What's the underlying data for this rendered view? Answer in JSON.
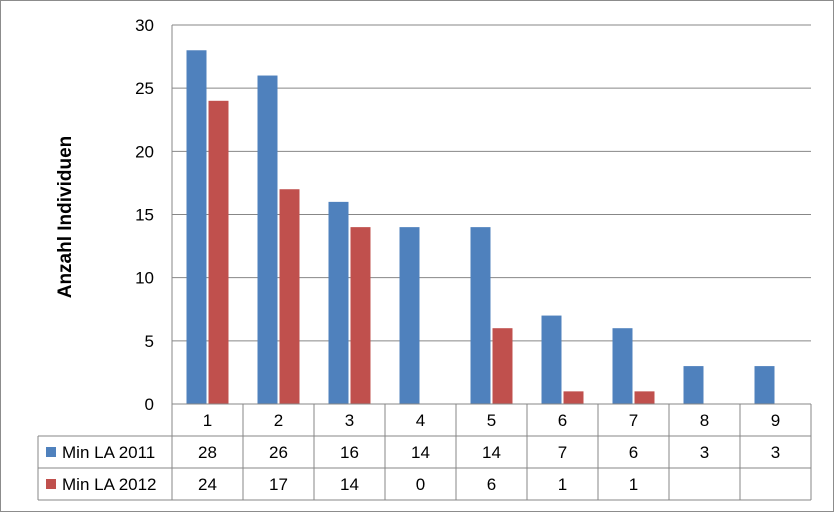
{
  "chart_data": {
    "type": "bar",
    "title": "",
    "xlabel": "",
    "ylabel": "Anzahl Individuen",
    "ylim": [
      0,
      30
    ],
    "yticks": [
      0,
      5,
      10,
      15,
      20,
      25,
      30
    ],
    "grid": true,
    "legend": "data-table",
    "categories": [
      "1",
      "2",
      "3",
      "4",
      "5",
      "6",
      "7",
      "8",
      "9"
    ],
    "series": [
      {
        "name": "Min LA 2011",
        "color": "#4f81bd",
        "values": [
          28,
          26,
          16,
          14,
          14,
          7,
          6,
          3,
          3
        ],
        "labels": [
          "28",
          "26",
          "16",
          "14",
          "14",
          "7",
          "6",
          "3",
          "3"
        ]
      },
      {
        "name": "Min LA 2012",
        "color": "#c0504d",
        "values": [
          24,
          17,
          14,
          0,
          6,
          1,
          1,
          null,
          null
        ],
        "labels": [
          "24",
          "17",
          "14",
          "0",
          "6",
          "1",
          "1",
          "",
          ""
        ]
      }
    ]
  }
}
